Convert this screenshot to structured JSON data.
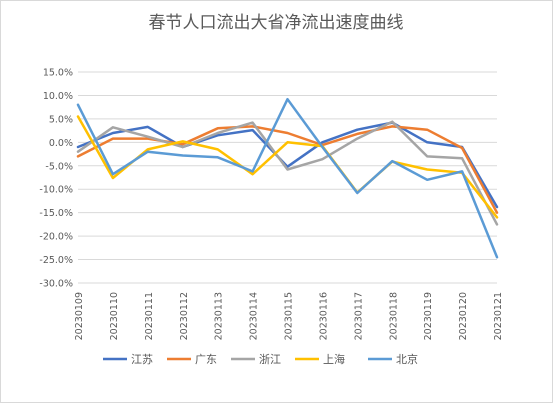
{
  "chart_data": {
    "type": "line",
    "title": "春节人口流出大省净流出速度曲线",
    "categories": [
      "20230109",
      "20230110",
      "20230111",
      "20230112",
      "20230113",
      "20230114",
      "20230115",
      "20230116",
      "20230117",
      "20230118",
      "20230119",
      "20230120",
      "20230121"
    ],
    "ylim": [
      -30,
      15
    ],
    "yticks": [
      "15.0%",
      "10.0%",
      "5.0%",
      "0.0%",
      "-5.0%",
      "-10.0%",
      "-15.0%",
      "-20.0%",
      "-25.0%",
      "-30.0%"
    ],
    "grid": true,
    "legend_position": "bottom",
    "series": [
      {
        "name": "江苏",
        "color": "#4472C4",
        "values": [
          -1.0,
          2.0,
          3.3,
          -1.0,
          1.5,
          2.6,
          -5.2,
          0.0,
          2.7,
          4.2,
          0.0,
          -1.0,
          -13.8
        ]
      },
      {
        "name": "广东",
        "color": "#ED7D31",
        "values": [
          -3.0,
          0.8,
          0.8,
          -0.4,
          3.0,
          3.4,
          2.0,
          -0.6,
          1.8,
          3.4,
          2.7,
          -1.2,
          -15.0
        ]
      },
      {
        "name": "浙江",
        "color": "#A5A5A5",
        "values": [
          -2.0,
          3.2,
          1.2,
          -1.0,
          2.0,
          4.2,
          -5.8,
          -3.6,
          0.8,
          4.4,
          -3.0,
          -3.4,
          -17.5
        ]
      },
      {
        "name": "上海",
        "color": "#FFC000",
        "values": [
          5.5,
          -7.6,
          -1.5,
          0.2,
          -1.5,
          -6.8,
          0.0,
          -0.8,
          -10.7,
          -4.1,
          -5.8,
          -6.5,
          -16.0
        ]
      },
      {
        "name": "北京",
        "color": "#5B9BD5",
        "values": [
          8.0,
          -6.8,
          -2.0,
          -2.8,
          -3.2,
          -6.2,
          9.2,
          -1.0,
          -10.8,
          -4.0,
          -8.0,
          -6.2,
          -24.5
        ]
      }
    ]
  }
}
